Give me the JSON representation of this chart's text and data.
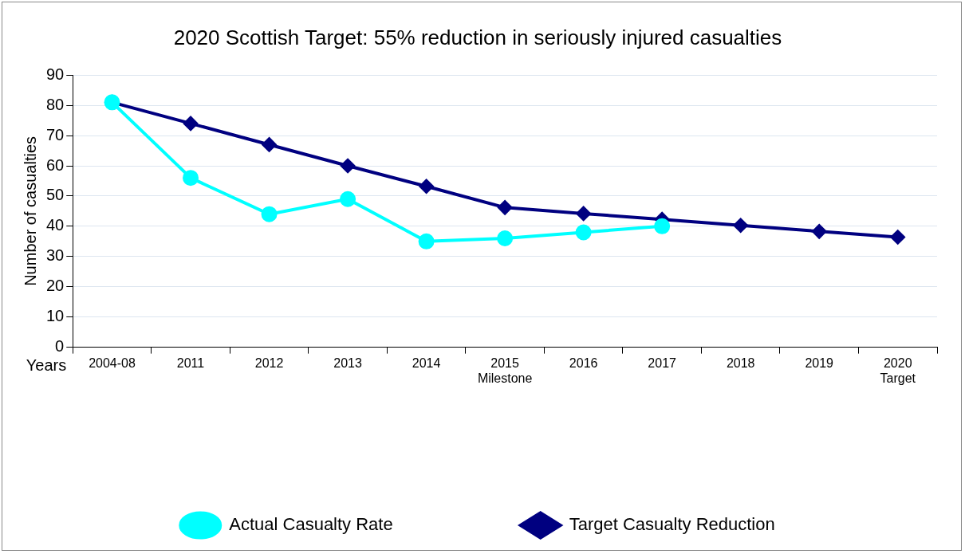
{
  "chart_data": {
    "type": "line",
    "title": "2020 Scottish Target: 55% reduction in seriously injured casualties",
    "xlabel": "Years",
    "ylabel": "Number of casualties",
    "categories": [
      "2004-08",
      "2011",
      "2012",
      "2013",
      "2014",
      "2015\nMilestone",
      "2016",
      "2017",
      "2018",
      "2019",
      "2020\nTarget"
    ],
    "series": [
      {
        "name": "Target Casualty Reduction",
        "color": "#000080",
        "marker": "diamond",
        "values": [
          81,
          74,
          67,
          60,
          53.2,
          46.2,
          44.2,
          42.3,
          40.3,
          38.3,
          36.4
        ]
      },
      {
        "name": "Actual Casualty Rate",
        "color": "#00ffff",
        "marker": "circle",
        "values": [
          81,
          56,
          44,
          49,
          35,
          36,
          38,
          40,
          null,
          null,
          null
        ]
      }
    ],
    "ylim": [
      0,
      90
    ],
    "yticks": [
      0,
      10,
      20,
      30,
      40,
      50,
      60,
      70,
      80,
      90
    ],
    "grid": "y",
    "legend": "bottom",
    "line_style": "solid"
  }
}
